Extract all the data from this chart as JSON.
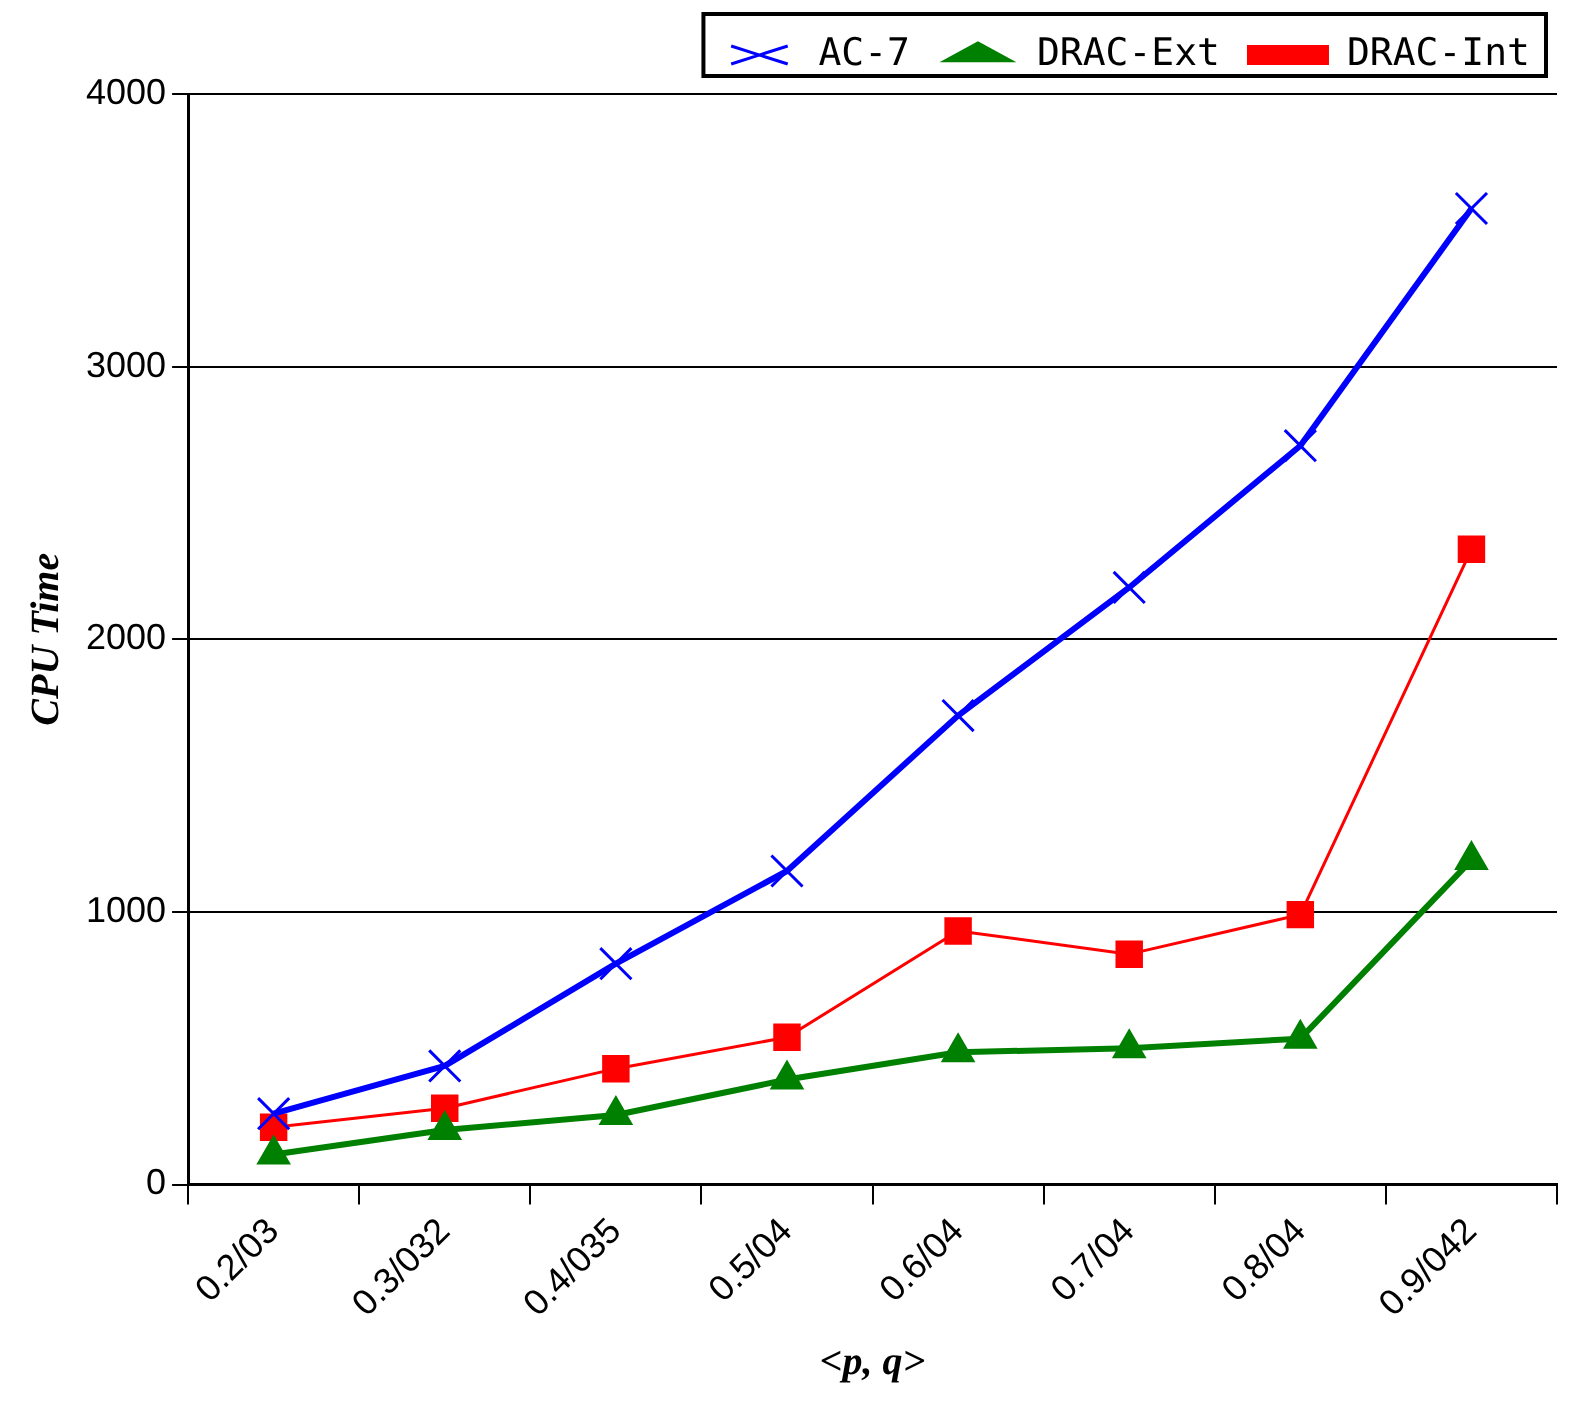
{
  "chart_data": {
    "type": "line",
    "xlabel": "<p, q>",
    "ylabel": "CPU Time",
    "categories": [
      "0.2/03",
      "0.3/032",
      "0.4/035",
      "0.5/04",
      "0.6/04",
      "0.7/04",
      "0.8/04",
      "0.9/042"
    ],
    "series": [
      {
        "name": "AC-7",
        "color": "#0000ff",
        "marker": "cross",
        "values": [
          260,
          435,
          810,
          1150,
          1720,
          2190,
          2710,
          3580
        ]
      },
      {
        "name": "DRAC-Ext",
        "color": "#008000",
        "marker": "triangle",
        "values": [
          110,
          200,
          255,
          385,
          485,
          500,
          535,
          1190
        ]
      },
      {
        "name": "DRAC-Int",
        "color": "#ff0000",
        "marker": "square",
        "values": [
          210,
          280,
          425,
          540,
          930,
          845,
          990,
          2330
        ]
      }
    ],
    "ylim": [
      0,
      4000
    ],
    "yticks": [
      0,
      1000,
      2000,
      3000,
      4000
    ],
    "grid": "y",
    "legend": "top",
    "line_style": "solid"
  }
}
